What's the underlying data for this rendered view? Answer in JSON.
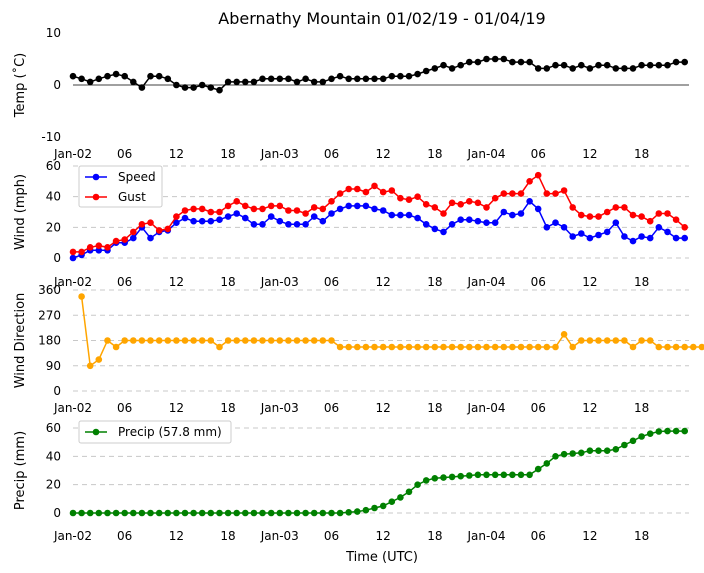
{
  "title": "Abernathy Mountain 01/02/19 - 01/04/19",
  "xlabel": "Time (UTC)",
  "x_tick_labels": [
    "Jan-02",
    "06",
    "12",
    "18",
    "Jan-03",
    "06",
    "12",
    "18",
    "Jan-04",
    "06",
    "12",
    "18"
  ],
  "x_tick_hours": [
    0,
    6,
    12,
    18,
    24,
    30,
    36,
    42,
    48,
    54,
    60,
    66
  ],
  "colors": {
    "temp": "#000000",
    "speed": "#0000ff",
    "gust": "#ff0000",
    "direction": "#ffa500",
    "precip": "#008000",
    "grid": "#c8c8c8"
  },
  "chart_data": [
    {
      "type": "line",
      "ylabel": "Temp (˚C)",
      "ylim": [
        -10,
        10
      ],
      "yticks": [
        -10,
        0,
        10
      ],
      "zero_line": true,
      "grid": false,
      "x_hours_start": 0,
      "x_hours_step": 1,
      "series": [
        {
          "name": "Temp",
          "color_key": "temp",
          "values": [
            1.7,
            1.2,
            0.6,
            1.2,
            1.7,
            2.1,
            1.7,
            0.6,
            -0.5,
            1.7,
            1.7,
            1.2,
            0,
            -0.5,
            -0.5,
            0,
            -0.5,
            -1,
            0.6,
            0.6,
            0.6,
            0.6,
            1.2,
            1.2,
            1.2,
            1.2,
            0.6,
            1.2,
            0.6,
            0.6,
            1.2,
            1.7,
            1.2,
            1.2,
            1.2,
            1.2,
            1.2,
            1.7,
            1.7,
            1.7,
            2.1,
            2.7,
            3.2,
            3.8,
            3.2,
            3.8,
            4.4,
            4.4,
            5,
            5,
            5,
            4.4,
            4.4,
            4.4,
            3.2,
            3.2,
            3.8,
            3.8,
            3.2,
            3.8,
            3.2,
            3.8,
            3.8,
            3.2,
            3.2,
            3.2,
            3.8,
            3.8,
            3.8,
            3.8,
            4.4,
            4.4
          ]
        }
      ]
    },
    {
      "type": "line",
      "ylabel": "Wind (mph)",
      "ylim": [
        0,
        60
      ],
      "yticks": [
        0,
        20,
        40,
        60
      ],
      "grid": true,
      "legend_position": "upper-left",
      "x_hours_start": 0,
      "x_hours_step": 1,
      "series": [
        {
          "name": "Speed",
          "color_key": "speed",
          "values": [
            0,
            2,
            5,
            5,
            5,
            10,
            10,
            13,
            20,
            13,
            17,
            18,
            23,
            26,
            24,
            24,
            24,
            25,
            27,
            29,
            26,
            22,
            22,
            27,
            24,
            22,
            22,
            22,
            27,
            24,
            29,
            32,
            34,
            34,
            34,
            32,
            31,
            28,
            28,
            28,
            26,
            22,
            19,
            17,
            22,
            25,
            25,
            24,
            23,
            23,
            30,
            28,
            29,
            37,
            32,
            20,
            23,
            20,
            14,
            16,
            13,
            15,
            17,
            23,
            14,
            11,
            14,
            13,
            20,
            17,
            13,
            13
          ]
        },
        {
          "name": "Gust",
          "color_key": "gust",
          "values": [
            4,
            4,
            7,
            8,
            7,
            11,
            12,
            17,
            22,
            23,
            18,
            19,
            27,
            31,
            32,
            32,
            30,
            30,
            34,
            37,
            34,
            32,
            32,
            34,
            34,
            31,
            31,
            29,
            33,
            32,
            37,
            42,
            45,
            45,
            43,
            47,
            43,
            44,
            39,
            38,
            40,
            35,
            33,
            29,
            36,
            35,
            37,
            36,
            33,
            39,
            42,
            42,
            42,
            50,
            54,
            42,
            42,
            44,
            33,
            28,
            27,
            27,
            30,
            33,
            33,
            28,
            27,
            24,
            29,
            29,
            25,
            20
          ]
        }
      ]
    },
    {
      "type": "line",
      "ylabel": "Wind Direction",
      "ylim": [
        0,
        360
      ],
      "yticks": [
        0,
        90,
        180,
        270,
        360
      ],
      "grid": true,
      "x_hours_start": 1,
      "x_hours_step": 1,
      "series": [
        {
          "name": "Direction",
          "color_key": "direction",
          "values": [
            337,
            90,
            112,
            180,
            157,
            180,
            180,
            180,
            180,
            180,
            180,
            180,
            180,
            180,
            180,
            180,
            157,
            180,
            180,
            180,
            180,
            180,
            180,
            180,
            180,
            180,
            180,
            180,
            180,
            180,
            157,
            157,
            157,
            157,
            157,
            157,
            157,
            157,
            157,
            157,
            157,
            157,
            157,
            157,
            157,
            157,
            157,
            157,
            157,
            157,
            157,
            157,
            157,
            157,
            157,
            157,
            202,
            157,
            180,
            180,
            180,
            180,
            180,
            180,
            157,
            180,
            180,
            157,
            157,
            157,
            157,
            157,
            157,
            157
          ]
        }
      ]
    },
    {
      "type": "line",
      "ylabel": "Precip (mm)",
      "ylim": [
        0,
        60
      ],
      "yticks": [
        0,
        20,
        40,
        60
      ],
      "grid": true,
      "legend_position": "upper-left",
      "x_hours_start": 0,
      "x_hours_step": 1,
      "series": [
        {
          "name": "Precip (57.8 mm)",
          "color_key": "precip",
          "values": [
            0,
            0,
            0,
            0,
            0,
            0,
            0,
            0,
            0,
            0,
            0,
            0,
            0,
            0,
            0,
            0,
            0,
            0,
            0,
            0,
            0,
            0,
            0,
            0,
            0,
            0,
            0,
            0,
            0,
            0,
            0,
            0,
            0.5,
            1,
            2,
            3.5,
            5,
            8,
            11,
            15,
            20,
            23,
            24.5,
            25,
            25.5,
            26,
            26.5,
            27,
            27,
            27,
            27,
            27,
            27,
            27,
            31,
            35,
            40,
            41.5,
            42,
            42.5,
            44,
            44,
            44,
            45,
            48,
            51,
            54,
            56,
            57.5,
            57.8,
            57.8,
            57.8
          ]
        }
      ]
    }
  ]
}
